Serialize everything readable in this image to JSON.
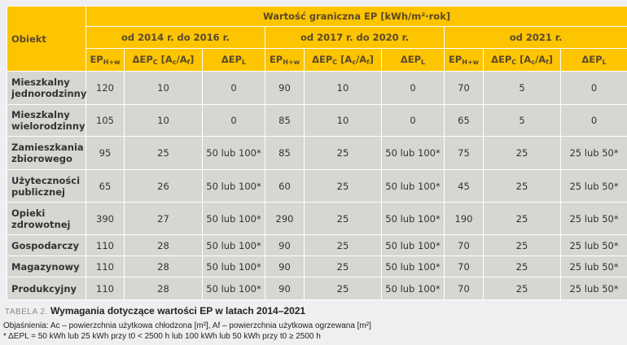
{
  "header": {
    "obiekt": "Obiekt",
    "main": "Wartość graniczna EP [kWh/m²·rok]",
    "periods": [
      "od 2014 r. do 2016 r.",
      "od 2017 r. do 2020 r.",
      "od 2021 r."
    ],
    "cols": {
      "ep": "EP",
      "ep_sub": "H+w",
      "dc": "ΔEP",
      "dc_sub": "C",
      "dc_tail_a": " [A",
      "dc_tail_a_sub": "c",
      "dc_tail_b": "/A",
      "dc_tail_b_sub": "f",
      "dc_end": "]",
      "dl": "ΔEP",
      "dl_sub": "L"
    }
  },
  "rows": [
    {
      "name": "Mieszkalny jednorodzinny",
      "v": [
        "120",
        "10",
        "0",
        "90",
        "10",
        "0",
        "70",
        "5",
        "0"
      ]
    },
    {
      "name": "Mieszkalny wielorodzinny",
      "v": [
        "105",
        "10",
        "0",
        "85",
        "10",
        "0",
        "65",
        "5",
        "0"
      ]
    },
    {
      "name": "Zamieszkania zbiorowego",
      "v": [
        "95",
        "25",
        "50 lub 100*",
        "85",
        "25",
        "50 lub 100*",
        "75",
        "25",
        "25 lub 50*"
      ]
    },
    {
      "name": "Użyteczności publicznej",
      "v": [
        "65",
        "26",
        "50 lub 100*",
        "60",
        "25",
        "50 lub 100*",
        "45",
        "25",
        "25 lub 50*"
      ]
    },
    {
      "name": "Opieki zdrowotnej",
      "v": [
        "390",
        "27",
        "50 lub 100*",
        "290",
        "25",
        "50 lub 100*",
        "190",
        "25",
        "25 lub 50*"
      ]
    },
    {
      "name": "Gospodarczy",
      "v": [
        "110",
        "28",
        "50 lub 100*",
        "90",
        "25",
        "50 lub 100*",
        "70",
        "25",
        "25 lub 50*"
      ]
    },
    {
      "name": "Magazynowy",
      "v": [
        "110",
        "28",
        "50 lub 100*",
        "90",
        "25",
        "50 lub 100*",
        "70",
        "25",
        "25 lub 50*"
      ]
    },
    {
      "name": "Produkcyjny",
      "v": [
        "110",
        "28",
        "50 lub 100*",
        "90",
        "25",
        "50 lub 100*",
        "70",
        "25",
        "25 lub 50*"
      ]
    }
  ],
  "caption": {
    "label": "TABELA 2.",
    "title": "Wymagania dotyczące wartości EP w latach 2014–2021"
  },
  "notes": {
    "line1": "Objaśnienia: Ac – powierzchnia użytkowa chłodzona [m²], Af – powierzchnia użytkowa ogrzewana [m²]",
    "line2": "*  ΔEPL = 50 kWh lub 25 kWh przy t0 < 2500 h lub 100 kWh lub 50 kWh przy t0 ≥ 2500 h"
  },
  "colors": {
    "header": "#fdc400",
    "body": "#d6d6d2",
    "background": "#efeff1"
  }
}
